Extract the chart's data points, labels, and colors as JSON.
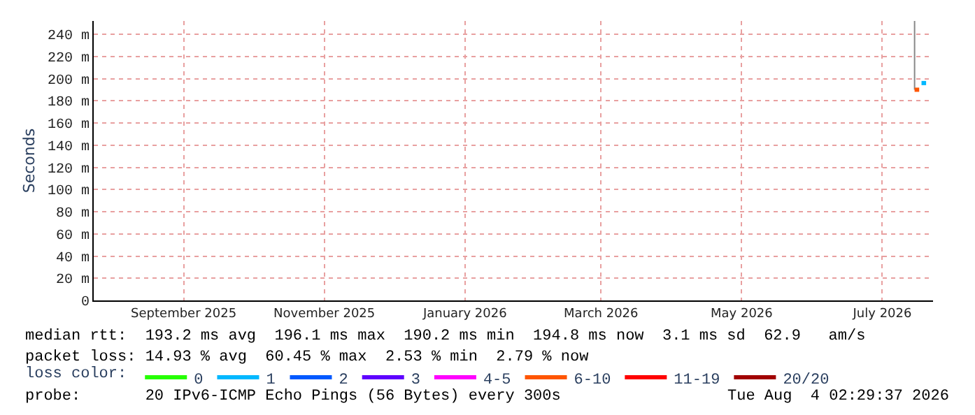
{
  "chart_data": {
    "type": "line",
    "ylabel": "Seconds",
    "legend_title": "loss color:",
    "xlim": [
      "2025-08-08",
      "2026-08-07"
    ],
    "xticks": [
      {
        "value": "2025-09-16",
        "label": "September 2025"
      },
      {
        "value": "2025-11-16",
        "label": "November 2025"
      },
      {
        "value": "2026-01-16",
        "label": "January 2026"
      },
      {
        "value": "2026-03-16",
        "label": "March 2026"
      },
      {
        "value": "2026-05-16",
        "label": "May 2026"
      },
      {
        "value": "2026-07-16",
        "label": "July 2026"
      }
    ],
    "ylim": [
      0,
      252
    ],
    "yticks": [
      0,
      {
        "value": 20,
        "label": "20 m"
      },
      {
        "value": 40,
        "label": "40 m"
      },
      {
        "value": 60,
        "label": "60 m"
      },
      {
        "value": 80,
        "label": "80 m"
      },
      {
        "value": 100,
        "label": "100 m"
      },
      {
        "value": 120,
        "label": "120 m"
      },
      {
        "value": 140,
        "label": "140 m"
      },
      {
        "value": 160,
        "label": "160 m"
      },
      {
        "value": 180,
        "label": "180 m"
      },
      {
        "value": 200,
        "label": "200 m"
      },
      {
        "value": 220,
        "label": "220 m"
      },
      {
        "value": 240,
        "label": "240 m"
      }
    ],
    "grid": true,
    "legend": "bottom",
    "series": [
      {
        "color": "#888888",
        "x": [
          "2026-07-30",
          "2026-07-30"
        ],
        "values": [
          190,
          252
        ]
      },
      {
        "name": "0",
        "color": "#26ff00"
      },
      {
        "name": "1",
        "color": "#00b8ff",
        "x": [
          "2026-08-02",
          "2026-08-04"
        ],
        "values": [
          196,
          196
        ]
      },
      {
        "name": "2",
        "color": "#0059ff"
      },
      {
        "name": "3",
        "color": "#5e00ff"
      },
      {
        "name": "4-5",
        "color": "#ff00fe"
      },
      {
        "name": "6-10",
        "color": "#ff5500",
        "x": [
          "2026-07-30",
          "2026-08-01"
        ],
        "values": [
          190,
          190
        ]
      },
      {
        "name": "11-19",
        "color": "#ff0000"
      },
      {
        "name": "20/20",
        "color": "#a10000"
      }
    ],
    "annotations": [
      "median rtt:  193.2 ms avg  196.1 ms max  190.2 ms min  194.8 ms now  3.1 ms sd  62.9   am/s",
      "packet loss: 14.93 % avg  60.45 % max  2.53 % min  2.79 % now",
      "probe:       20 IPv6-ICMP Echo Pings (56 Bytes) every 300s",
      "Tue Aug  4 02:29:37 2026"
    ]
  }
}
